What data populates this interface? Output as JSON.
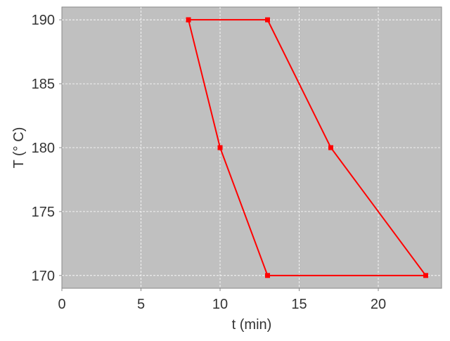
{
  "chart_data": {
    "type": "line",
    "title": "",
    "xlabel": "t (min)",
    "ylabel": "T (° C)",
    "xlim": [
      0,
      24
    ],
    "ylim": [
      169,
      191
    ],
    "xticks": [
      0,
      5,
      10,
      15,
      20
    ],
    "yticks": [
      170,
      175,
      180,
      185,
      190
    ],
    "grid": true,
    "series": [
      {
        "x": [
          8,
          13,
          17,
          23,
          13,
          10,
          8
        ],
        "y": [
          190,
          190,
          180,
          170,
          170,
          180,
          190
        ],
        "color": "#ff0000",
        "marker": "square"
      }
    ],
    "colors": {
      "plot_background": "#c0c0c0",
      "grid": "#ffffff"
    }
  }
}
